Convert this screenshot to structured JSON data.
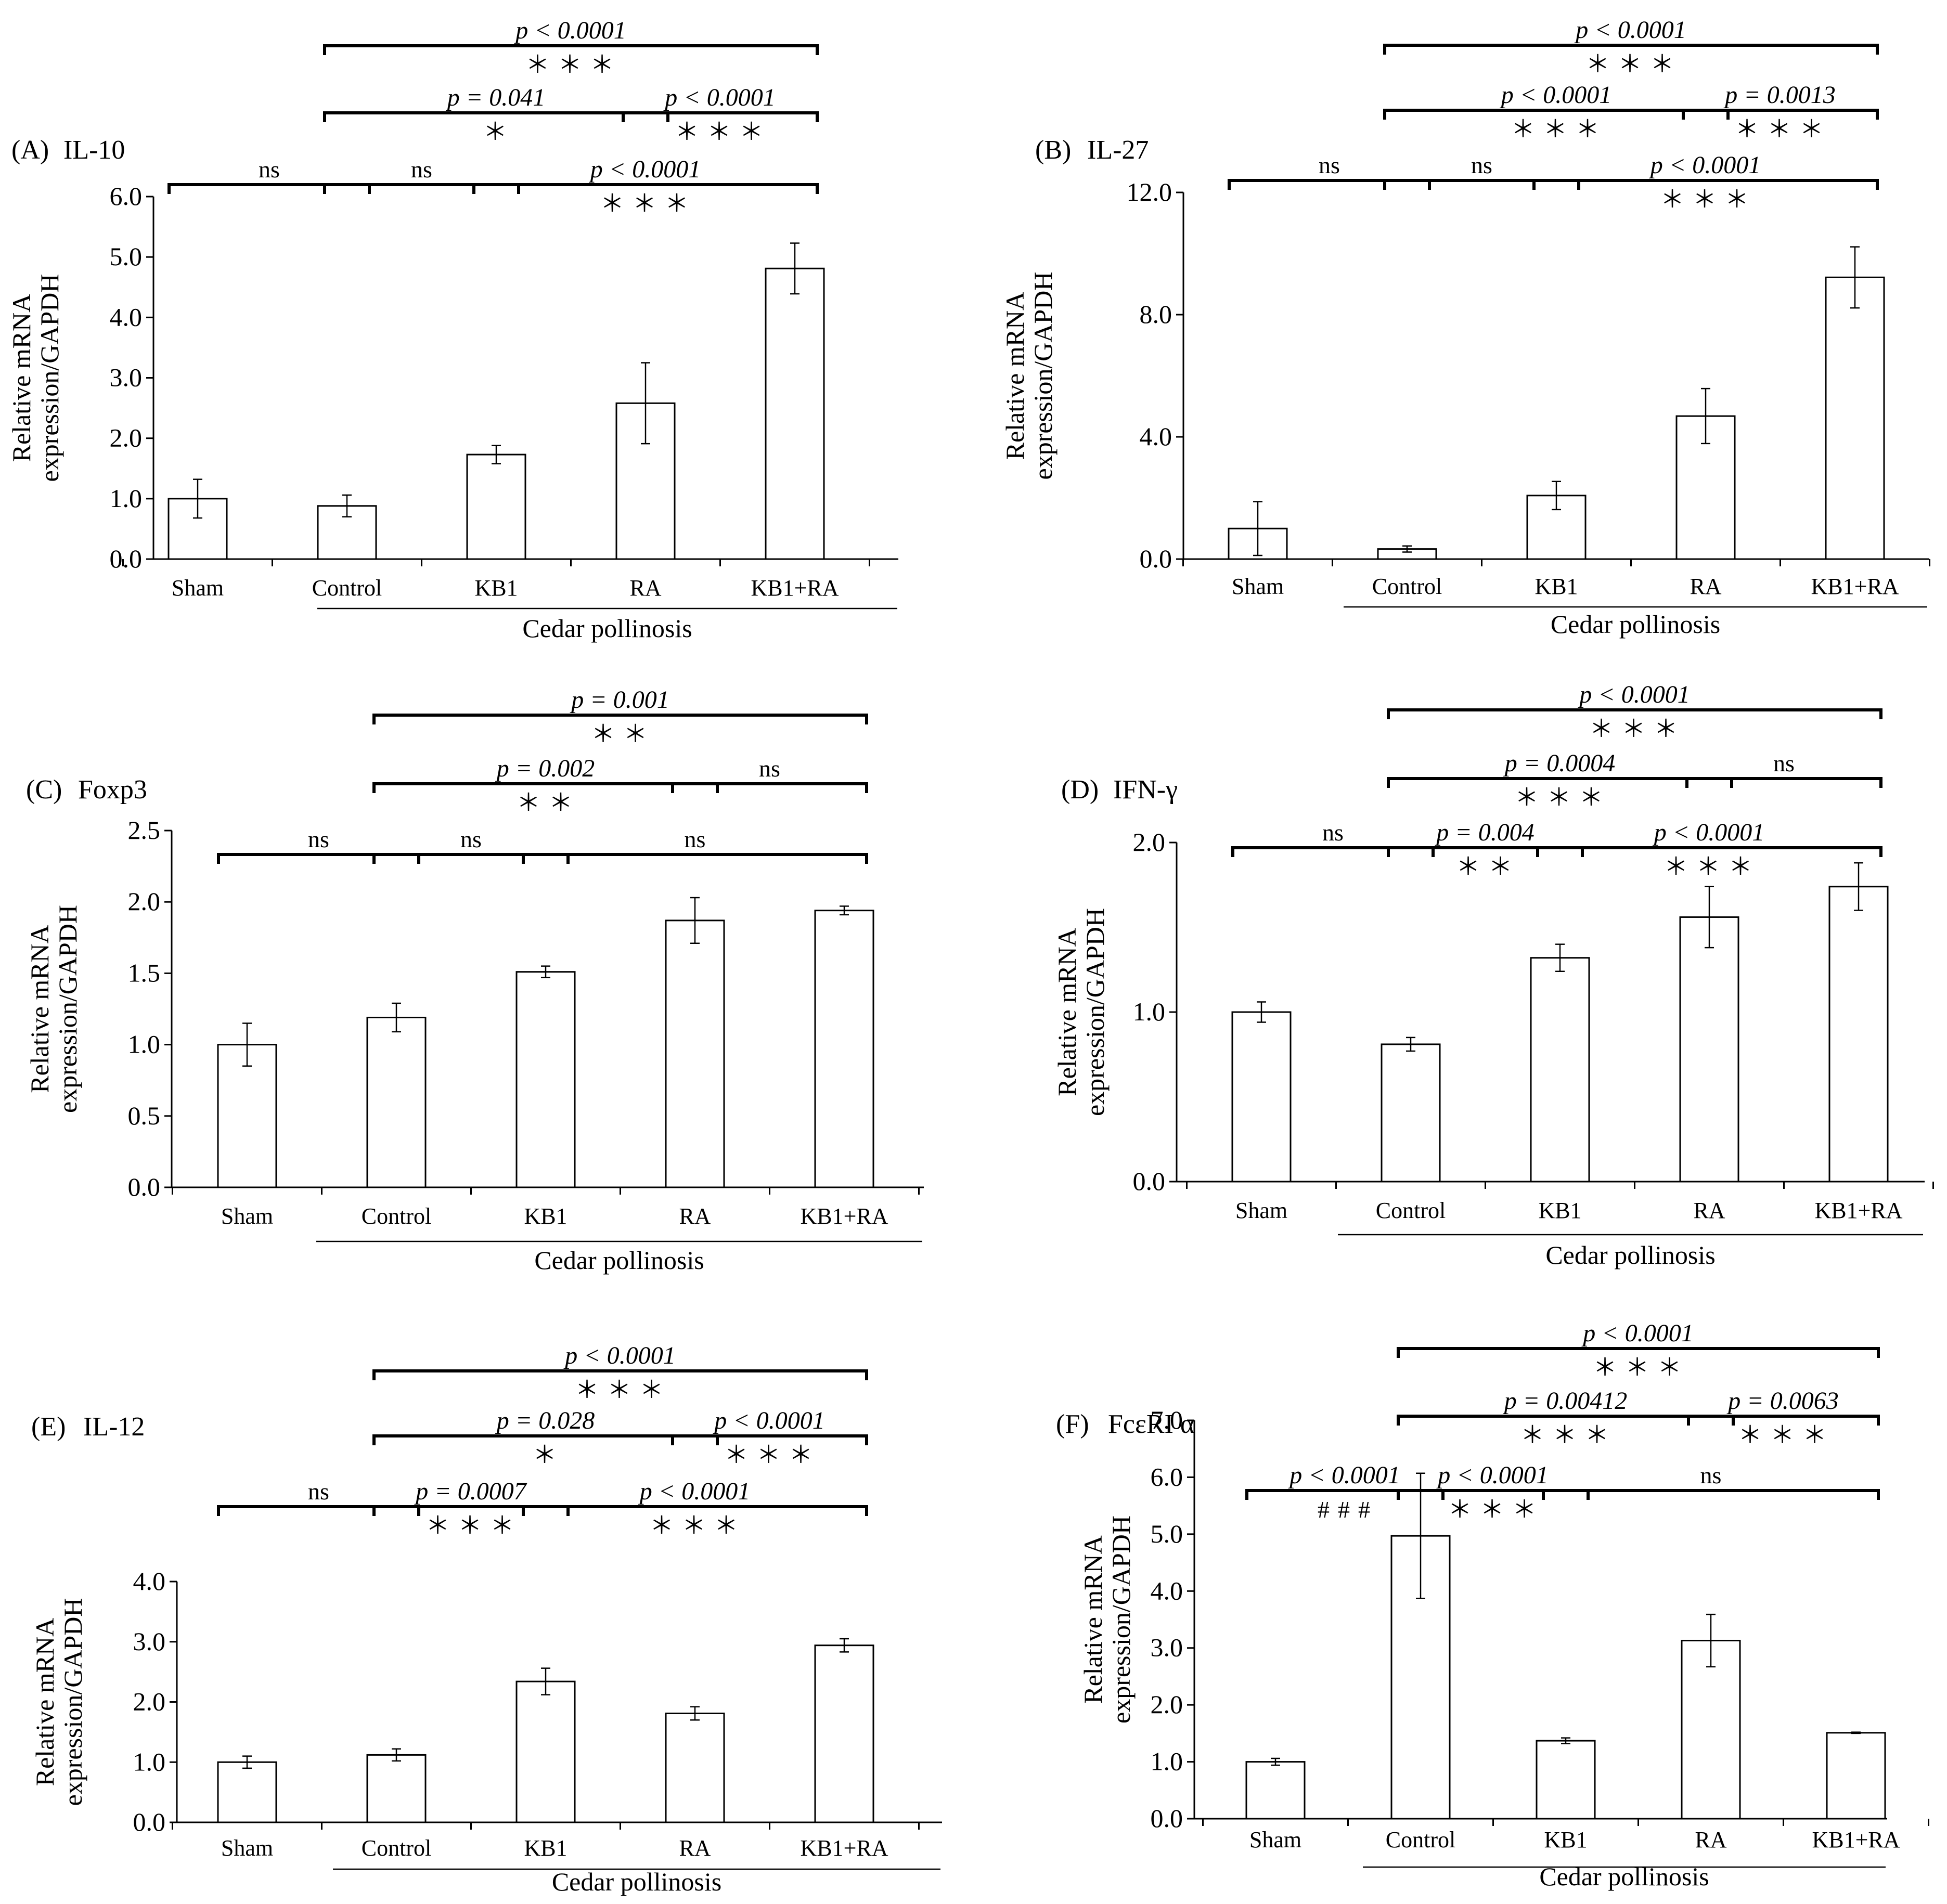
{
  "figure": {
    "category_group_label": "Cedar pollinosis"
  },
  "chart_data": [
    {
      "panel": "(A)",
      "title": "IL-10",
      "type": "bar",
      "ylabel_line1": "Relative mRNA",
      "ylabel_line2": "expression/GAPDH",
      "ylim": [
        0,
        6
      ],
      "yticks": [
        "0.0",
        "1.0",
        "2.0",
        "3.0",
        "4.0",
        "5.0",
        "6.0"
      ],
      "categories": [
        "Sham",
        "Control",
        "KB1",
        "RA",
        "KB1+RA"
      ],
      "values": [
        1.0,
        0.88,
        1.73,
        2.58,
        4.81
      ],
      "errors": [
        0.32,
        0.18,
        0.15,
        0.67,
        0.42
      ],
      "brackets": [
        {
          "from": 0,
          "to": 1,
          "level": 0,
          "p": "ns",
          "sig": ""
        },
        {
          "from": 1,
          "to": 2,
          "level": 0,
          "p": "ns",
          "sig": ""
        },
        {
          "from": 2,
          "to": 4,
          "level": 0,
          "p": "p < 0.0001",
          "sig": "＊＊＊"
        },
        {
          "from": 1,
          "to": 3,
          "level": 1,
          "p": "p = 0.041",
          "sig": "＊"
        },
        {
          "from": 3,
          "to": 4,
          "level": 1,
          "p": "p < 0.0001",
          "sig": "＊＊＊"
        },
        {
          "from": 1,
          "to": 4,
          "level": 2,
          "p": "p < 0.0001",
          "sig": "＊＊＊"
        }
      ]
    },
    {
      "panel": "(B)",
      "title": "IL-27",
      "type": "bar",
      "ylabel_line1": "Relative mRNA",
      "ylabel_line2": "expression/GAPDH",
      "ylim": [
        0,
        12
      ],
      "yticks": [
        "0.0",
        "4.0",
        "8.0",
        "12.0"
      ],
      "categories": [
        "Sham",
        "Control",
        "KB1",
        "RA",
        "KB1+RA"
      ],
      "values": [
        1.0,
        0.33,
        2.08,
        4.68,
        9.22
      ],
      "errors": [
        0.88,
        0.1,
        0.46,
        0.9,
        1.0
      ],
      "brackets": [
        {
          "from": 0,
          "to": 1,
          "level": 0,
          "p": "ns",
          "sig": ""
        },
        {
          "from": 1,
          "to": 2,
          "level": 0,
          "p": "ns",
          "sig": ""
        },
        {
          "from": 2,
          "to": 4,
          "level": 0,
          "p": "p < 0.0001",
          "sig": "＊＊＊"
        },
        {
          "from": 1,
          "to": 3,
          "level": 1,
          "p": "p < 0.0001",
          "sig": "＊＊＊"
        },
        {
          "from": 3,
          "to": 4,
          "level": 1,
          "p": "p = 0.0013",
          "sig": "＊＊＊"
        },
        {
          "from": 1,
          "to": 4,
          "level": 2,
          "p": "p < 0.0001",
          "sig": "＊＊＊"
        }
      ]
    },
    {
      "panel": "(C)",
      "title": "Foxp3",
      "type": "bar",
      "ylabel_line1": "Relative mRNA",
      "ylabel_line2": "expression/GAPDH",
      "ylim": [
        0,
        2.5
      ],
      "yticks": [
        "0.0",
        "0.5",
        "1.0",
        "1.5",
        "2.0",
        "2.5"
      ],
      "categories": [
        "Sham",
        "Control",
        "KB1",
        "RA",
        "KB1+RA"
      ],
      "values": [
        1.0,
        1.19,
        1.51,
        1.87,
        1.94
      ],
      "errors": [
        0.15,
        0.1,
        0.04,
        0.16,
        0.03
      ],
      "brackets": [
        {
          "from": 0,
          "to": 1,
          "level": 0,
          "p": "ns",
          "sig": ""
        },
        {
          "from": 1,
          "to": 2,
          "level": 0,
          "p": "ns",
          "sig": ""
        },
        {
          "from": 2,
          "to": 4,
          "level": 0,
          "p": "ns",
          "sig": ""
        },
        {
          "from": 1,
          "to": 3,
          "level": 1,
          "p": "p = 0.002",
          "sig": "＊＊"
        },
        {
          "from": 3,
          "to": 4,
          "level": 1,
          "p": "ns",
          "sig": ""
        },
        {
          "from": 1,
          "to": 4,
          "level": 2,
          "p": "p = 0.001",
          "sig": "＊＊"
        }
      ]
    },
    {
      "panel": "(D)",
      "title": "IFN-γ",
      "type": "bar",
      "ylabel_line1": "Relative mRNA",
      "ylabel_line2": "expression/GAPDH",
      "ylim": [
        0,
        2
      ],
      "yticks": [
        "0.0",
        "1.0",
        "2.0"
      ],
      "categories": [
        "Sham",
        "Control",
        "KB1",
        "RA",
        "KB1+RA"
      ],
      "values": [
        1.0,
        0.81,
        1.32,
        1.56,
        1.74
      ],
      "errors": [
        0.06,
        0.04,
        0.08,
        0.18,
        0.14
      ],
      "brackets": [
        {
          "from": 0,
          "to": 1,
          "level": 0,
          "p": "ns",
          "sig": ""
        },
        {
          "from": 1,
          "to": 2,
          "level": 0,
          "p": "p = 0.004",
          "sig": "＊＊"
        },
        {
          "from": 2,
          "to": 4,
          "level": 0,
          "p": "p < 0.0001",
          "sig": "＊＊＊"
        },
        {
          "from": 1,
          "to": 3,
          "level": 1,
          "p": "p = 0.0004",
          "sig": "＊＊＊"
        },
        {
          "from": 3,
          "to": 4,
          "level": 1,
          "p": "ns",
          "sig": ""
        },
        {
          "from": 1,
          "to": 4,
          "level": 2,
          "p": "p < 0.0001",
          "sig": "＊＊＊"
        }
      ]
    },
    {
      "panel": "(E)",
      "title": "IL-12",
      "type": "bar",
      "ylabel_line1": "Relative mRNA",
      "ylabel_line2": "expression/GAPDH",
      "ylim": [
        0,
        4
      ],
      "yticks": [
        "0.0",
        "1.0",
        "2.0",
        "3.0",
        "4.0"
      ],
      "categories": [
        "Sham",
        "Control",
        "KB1",
        "RA",
        "KB1+RA"
      ],
      "values": [
        1.0,
        1.12,
        2.34,
        1.81,
        2.94
      ],
      "errors": [
        0.1,
        0.1,
        0.22,
        0.11,
        0.11
      ],
      "brackets": [
        {
          "from": 0,
          "to": 1,
          "level": 0,
          "p": "ns",
          "sig": ""
        },
        {
          "from": 1,
          "to": 2,
          "level": 0,
          "p": "p = 0.0007",
          "sig": "＊＊＊"
        },
        {
          "from": 2,
          "to": 4,
          "level": 0,
          "p": "p < 0.0001",
          "sig": "＊＊＊"
        },
        {
          "from": 1,
          "to": 3,
          "level": 1,
          "p": "p = 0.028",
          "sig": "＊"
        },
        {
          "from": 3,
          "to": 4,
          "level": 1,
          "p": "p < 0.0001",
          "sig": "＊＊＊"
        },
        {
          "from": 1,
          "to": 4,
          "level": 2,
          "p": "p < 0.0001",
          "sig": "＊＊＊"
        }
      ]
    },
    {
      "panel": "(F)",
      "title": "FcεRI α",
      "type": "bar",
      "ylabel_line1": "Relative mRNA",
      "ylabel_line2": "expression/GAPDH",
      "ylim": [
        0,
        7
      ],
      "yticks": [
        "0.0",
        "1.0",
        "2.0",
        "3.0",
        "4.0",
        "5.0",
        "6.0",
        "7.0"
      ],
      "categories": [
        "Sham",
        "Control",
        "KB1",
        "RA",
        "KB1+RA"
      ],
      "values": [
        1.0,
        4.97,
        1.37,
        3.13,
        1.51
      ],
      "errors": [
        0.06,
        1.1,
        0.05,
        0.46,
        0.01
      ],
      "brackets": [
        {
          "from": 0,
          "to": 1,
          "level": 0,
          "p": "p < 0.0001",
          "sig": "###"
        },
        {
          "from": 1,
          "to": 2,
          "level": 0,
          "p": "p < 0.0001",
          "sig": "＊＊＊"
        },
        {
          "from": 2,
          "to": 4,
          "level": 0,
          "p": "ns",
          "sig": ""
        },
        {
          "from": 1,
          "to": 3,
          "level": 1,
          "p": "p = 0.00412",
          "sig": "＊＊＊"
        },
        {
          "from": 3,
          "to": 4,
          "level": 1,
          "p": "p = 0.0063",
          "sig": "＊＊＊"
        },
        {
          "from": 1,
          "to": 4,
          "level": 2,
          "p": "p < 0.0001",
          "sig": "＊＊＊"
        }
      ]
    }
  ]
}
